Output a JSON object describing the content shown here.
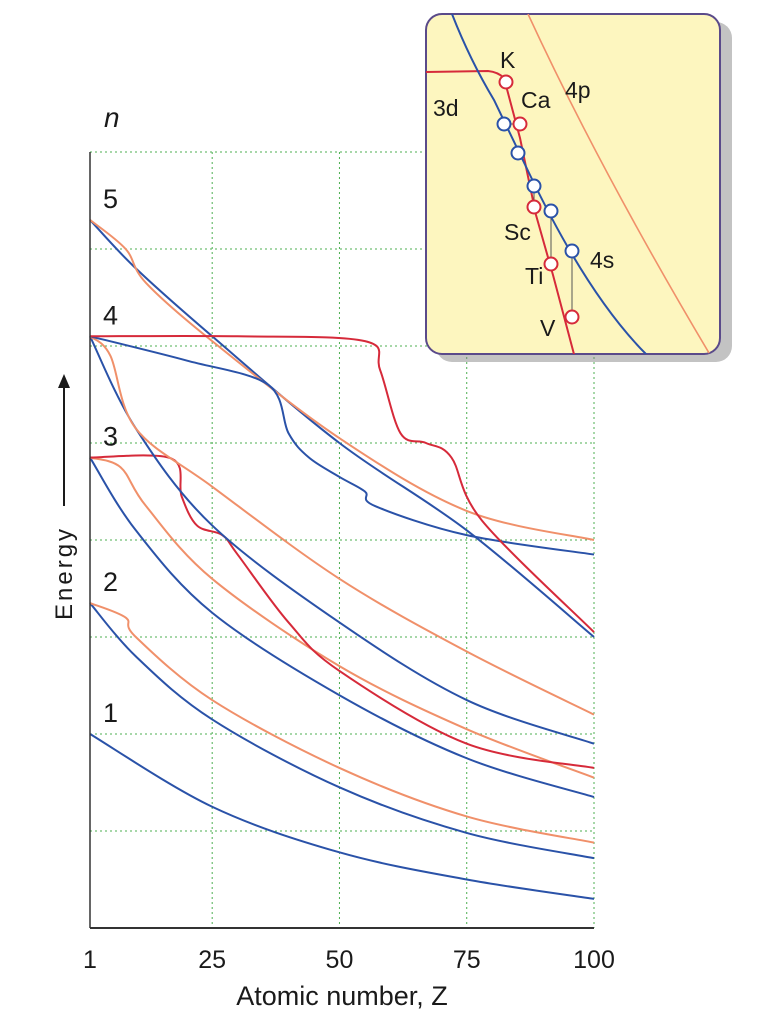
{
  "chart_data": {
    "type": "line",
    "title": "",
    "xlabel": "Atomic number, Z",
    "ylabel": "Energy",
    "xlim": [
      1,
      100
    ],
    "ylim": [
      0,
      8
    ],
    "x_ticks": [
      "1",
      "25",
      "50",
      "75",
      "100"
    ],
    "y_ticks": [],
    "grid": true,
    "shell_axis_label": "n",
    "shell_labels": [
      {
        "text": "1",
        "y": 2.0
      },
      {
        "text": "2",
        "y": 3.35
      },
      {
        "text": "3",
        "y": 4.85
      },
      {
        "text": "4",
        "y": 6.1
      },
      {
        "text": "5",
        "y": 7.3
      }
    ],
    "series": [
      {
        "color": "#2a52a8",
        "points": [
          [
            1,
            2.0
          ],
          [
            25,
            1.25
          ],
          [
            50,
            0.78
          ],
          [
            75,
            0.5
          ],
          [
            100,
            0.3
          ]
        ]
      },
      {
        "color": "#2a52a8",
        "points": [
          [
            1,
            3.35
          ],
          [
            10,
            2.8
          ],
          [
            25,
            2.15
          ],
          [
            50,
            1.45
          ],
          [
            75,
            0.98
          ],
          [
            100,
            0.72
          ]
        ]
      },
      {
        "color": "#f0906a",
        "points": [
          [
            1,
            3.35
          ],
          [
            8,
            3.2
          ],
          [
            10,
            3.0
          ],
          [
            25,
            2.35
          ],
          [
            50,
            1.65
          ],
          [
            75,
            1.15
          ],
          [
            100,
            0.88
          ]
        ]
      },
      {
        "color": "#2a52a8",
        "points": [
          [
            1,
            4.85
          ],
          [
            10,
            4.1
          ],
          [
            25,
            3.25
          ],
          [
            50,
            2.4
          ],
          [
            75,
            1.75
          ],
          [
            100,
            1.35
          ]
        ]
      },
      {
        "color": "#f0906a",
        "points": [
          [
            1,
            4.85
          ],
          [
            7,
            4.75
          ],
          [
            12,
            4.35
          ],
          [
            25,
            3.6
          ],
          [
            50,
            2.7
          ],
          [
            75,
            2.05
          ],
          [
            100,
            1.55
          ]
        ]
      },
      {
        "color": "#d62a3a",
        "points": [
          [
            1,
            4.85
          ],
          [
            17,
            4.84
          ],
          [
            19,
            4.45
          ],
          [
            22,
            4.15
          ],
          [
            27,
            4.05
          ],
          [
            30,
            3.85
          ],
          [
            40,
            3.15
          ],
          [
            50,
            2.65
          ],
          [
            75,
            1.9
          ],
          [
            100,
            1.65
          ]
        ]
      },
      {
        "color": "#2a52a8",
        "points": [
          [
            1,
            6.1
          ],
          [
            10,
            5.15
          ],
          [
            25,
            4.15
          ],
          [
            50,
            3.15
          ],
          [
            75,
            2.35
          ],
          [
            100,
            1.9
          ]
        ]
      },
      {
        "color": "#f0906a",
        "points": [
          [
            1,
            6.1
          ],
          [
            5,
            5.9
          ],
          [
            10,
            5.15
          ],
          [
            25,
            4.55
          ],
          [
            50,
            3.6
          ],
          [
            75,
            2.85
          ],
          [
            100,
            2.2
          ]
        ]
      },
      {
        "color": "#2a52a8",
        "points": [
          [
            1,
            7.3
          ],
          [
            10,
            6.8
          ],
          [
            25,
            6.1
          ],
          [
            50,
            5.0
          ],
          [
            75,
            4.1
          ],
          [
            100,
            3.0
          ]
        ]
      },
      {
        "color": "#f0906a",
        "points": [
          [
            1,
            7.3
          ],
          [
            8,
            7.0
          ],
          [
            12,
            6.65
          ],
          [
            25,
            6.05
          ],
          [
            50,
            5.05
          ],
          [
            75,
            4.3
          ],
          [
            100,
            4.0
          ]
        ]
      },
      {
        "color": "#2a52a8",
        "points": [
          [
            1,
            6.1
          ],
          [
            20,
            5.85
          ],
          [
            36,
            5.6
          ],
          [
            40,
            5.1
          ],
          [
            44,
            4.85
          ],
          [
            50,
            4.65
          ],
          [
            55,
            4.5
          ],
          [
            57,
            4.35
          ],
          [
            75,
            4.05
          ],
          [
            100,
            3.85
          ]
        ]
      },
      {
        "color": "#d62a3a",
        "points": [
          [
            1,
            6.1
          ],
          [
            30,
            6.1
          ],
          [
            55,
            6.05
          ],
          [
            58,
            5.75
          ],
          [
            62,
            5.1
          ],
          [
            67,
            5.0
          ],
          [
            72,
            4.85
          ],
          [
            78,
            4.2
          ],
          [
            100,
            3.05
          ]
        ]
      }
    ]
  },
  "inset": {
    "labels": {
      "k": "K",
      "ca": "Ca",
      "sc": "Sc",
      "ti": "Ti",
      "v": "V",
      "d3": "3d",
      "p4": "4p",
      "s4": "4s"
    }
  }
}
